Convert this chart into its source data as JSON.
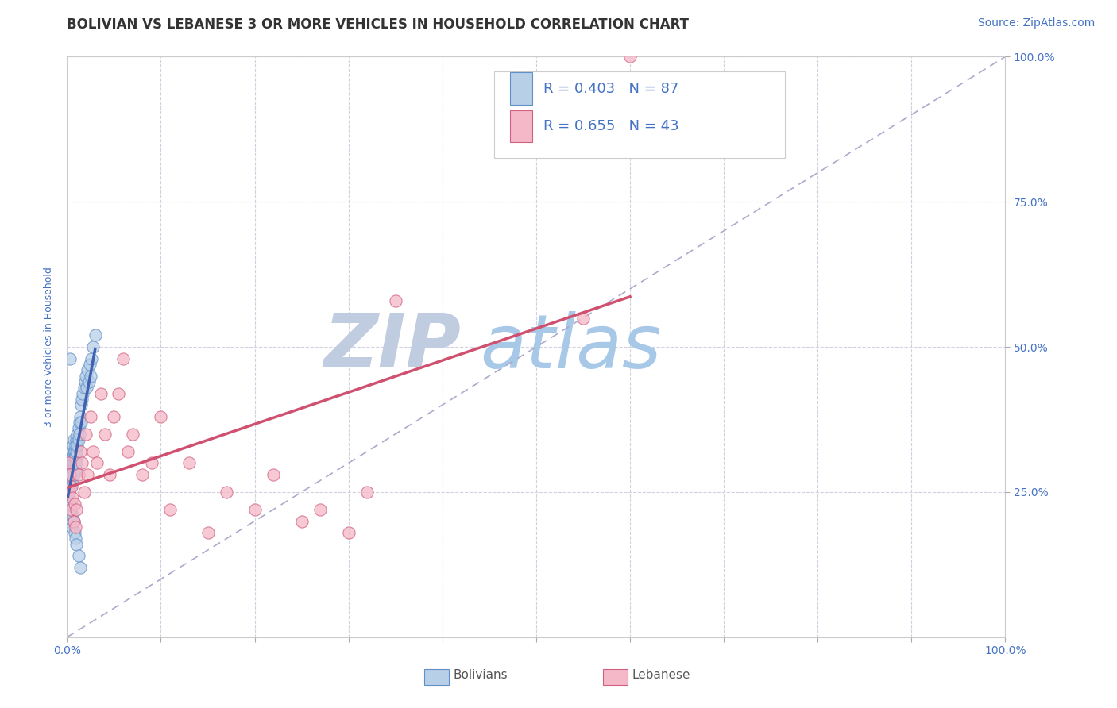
{
  "title": "BOLIVIAN VS LEBANESE 3 OR MORE VEHICLES IN HOUSEHOLD CORRELATION CHART",
  "source": "Source: ZipAtlas.com",
  "ylabel": "3 or more Vehicles in Household",
  "xmin": 0.0,
  "xmax": 1.0,
  "ymin": 0.0,
  "ymax": 1.0,
  "bolivian_R": 0.403,
  "bolivian_N": 87,
  "lebanese_R": 0.655,
  "lebanese_N": 43,
  "bolivian_color": "#b8cfe8",
  "lebanese_color": "#f5b8c8",
  "bolivian_edge_color": "#6090c8",
  "lebanese_edge_color": "#d06080",
  "bolivian_line_color": "#4060b0",
  "lebanese_line_color": "#d05070",
  "ref_line_color": "#aaaacc",
  "bolivian_x": [
    0.001,
    0.001,
    0.001,
    0.001,
    0.002,
    0.002,
    0.002,
    0.002,
    0.002,
    0.002,
    0.002,
    0.003,
    0.003,
    0.003,
    0.003,
    0.003,
    0.003,
    0.003,
    0.004,
    0.004,
    0.004,
    0.004,
    0.004,
    0.004,
    0.005,
    0.005,
    0.005,
    0.005,
    0.005,
    0.005,
    0.006,
    0.006,
    0.006,
    0.006,
    0.006,
    0.007,
    0.007,
    0.007,
    0.007,
    0.008,
    0.008,
    0.008,
    0.009,
    0.009,
    0.009,
    0.01,
    0.01,
    0.01,
    0.011,
    0.011,
    0.012,
    0.012,
    0.013,
    0.013,
    0.014,
    0.015,
    0.015,
    0.016,
    0.017,
    0.018,
    0.019,
    0.02,
    0.021,
    0.022,
    0.023,
    0.024,
    0.025,
    0.026,
    0.028,
    0.03,
    0.001,
    0.001,
    0.002,
    0.002,
    0.003,
    0.003,
    0.004,
    0.004,
    0.005,
    0.006,
    0.007,
    0.008,
    0.009,
    0.01,
    0.012,
    0.014,
    0.003
  ],
  "bolivian_y": [
    0.26,
    0.27,
    0.25,
    0.28,
    0.27,
    0.28,
    0.26,
    0.29,
    0.25,
    0.27,
    0.26,
    0.28,
    0.3,
    0.27,
    0.29,
    0.26,
    0.28,
    0.31,
    0.29,
    0.3,
    0.27,
    0.31,
    0.28,
    0.26,
    0.3,
    0.32,
    0.29,
    0.27,
    0.31,
    0.28,
    0.31,
    0.33,
    0.29,
    0.3,
    0.27,
    0.32,
    0.3,
    0.28,
    0.34,
    0.32,
    0.3,
    0.31,
    0.33,
    0.31,
    0.29,
    0.34,
    0.32,
    0.3,
    0.35,
    0.33,
    0.36,
    0.34,
    0.37,
    0.35,
    0.38,
    0.4,
    0.37,
    0.41,
    0.42,
    0.43,
    0.44,
    0.45,
    0.43,
    0.46,
    0.44,
    0.47,
    0.45,
    0.48,
    0.5,
    0.52,
    0.23,
    0.21,
    0.22,
    0.24,
    0.2,
    0.22,
    0.21,
    0.23,
    0.19,
    0.21,
    0.2,
    0.18,
    0.17,
    0.16,
    0.14,
    0.12,
    0.48
  ],
  "lebanese_x": [
    0.001,
    0.002,
    0.003,
    0.004,
    0.005,
    0.006,
    0.007,
    0.008,
    0.009,
    0.01,
    0.012,
    0.014,
    0.016,
    0.018,
    0.02,
    0.022,
    0.025,
    0.028,
    0.032,
    0.036,
    0.04,
    0.045,
    0.05,
    0.055,
    0.06,
    0.065,
    0.07,
    0.08,
    0.09,
    0.1,
    0.11,
    0.13,
    0.15,
    0.17,
    0.2,
    0.22,
    0.25,
    0.27,
    0.3,
    0.32,
    0.35,
    0.55,
    0.6
  ],
  "lebanese_y": [
    0.3,
    0.25,
    0.28,
    0.22,
    0.26,
    0.24,
    0.2,
    0.23,
    0.19,
    0.22,
    0.28,
    0.32,
    0.3,
    0.25,
    0.35,
    0.28,
    0.38,
    0.32,
    0.3,
    0.42,
    0.35,
    0.28,
    0.38,
    0.42,
    0.48,
    0.32,
    0.35,
    0.28,
    0.3,
    0.38,
    0.22,
    0.3,
    0.18,
    0.25,
    0.22,
    0.28,
    0.2,
    0.22,
    0.18,
    0.25,
    0.58,
    0.55,
    1.0
  ],
  "watermark_ZIP": "ZIP",
  "watermark_atlas": "atlas",
  "watermark_ZIP_color": "#c0cce0",
  "watermark_atlas_color": "#a8c8e8",
  "title_fontsize": 12,
  "axis_label_fontsize": 9,
  "tick_fontsize": 10,
  "legend_fontsize": 13,
  "source_fontsize": 10,
  "grid_color": "#d0d0e0",
  "background_color": "#ffffff",
  "title_color": "#333333",
  "axis_color": "#4472c4"
}
